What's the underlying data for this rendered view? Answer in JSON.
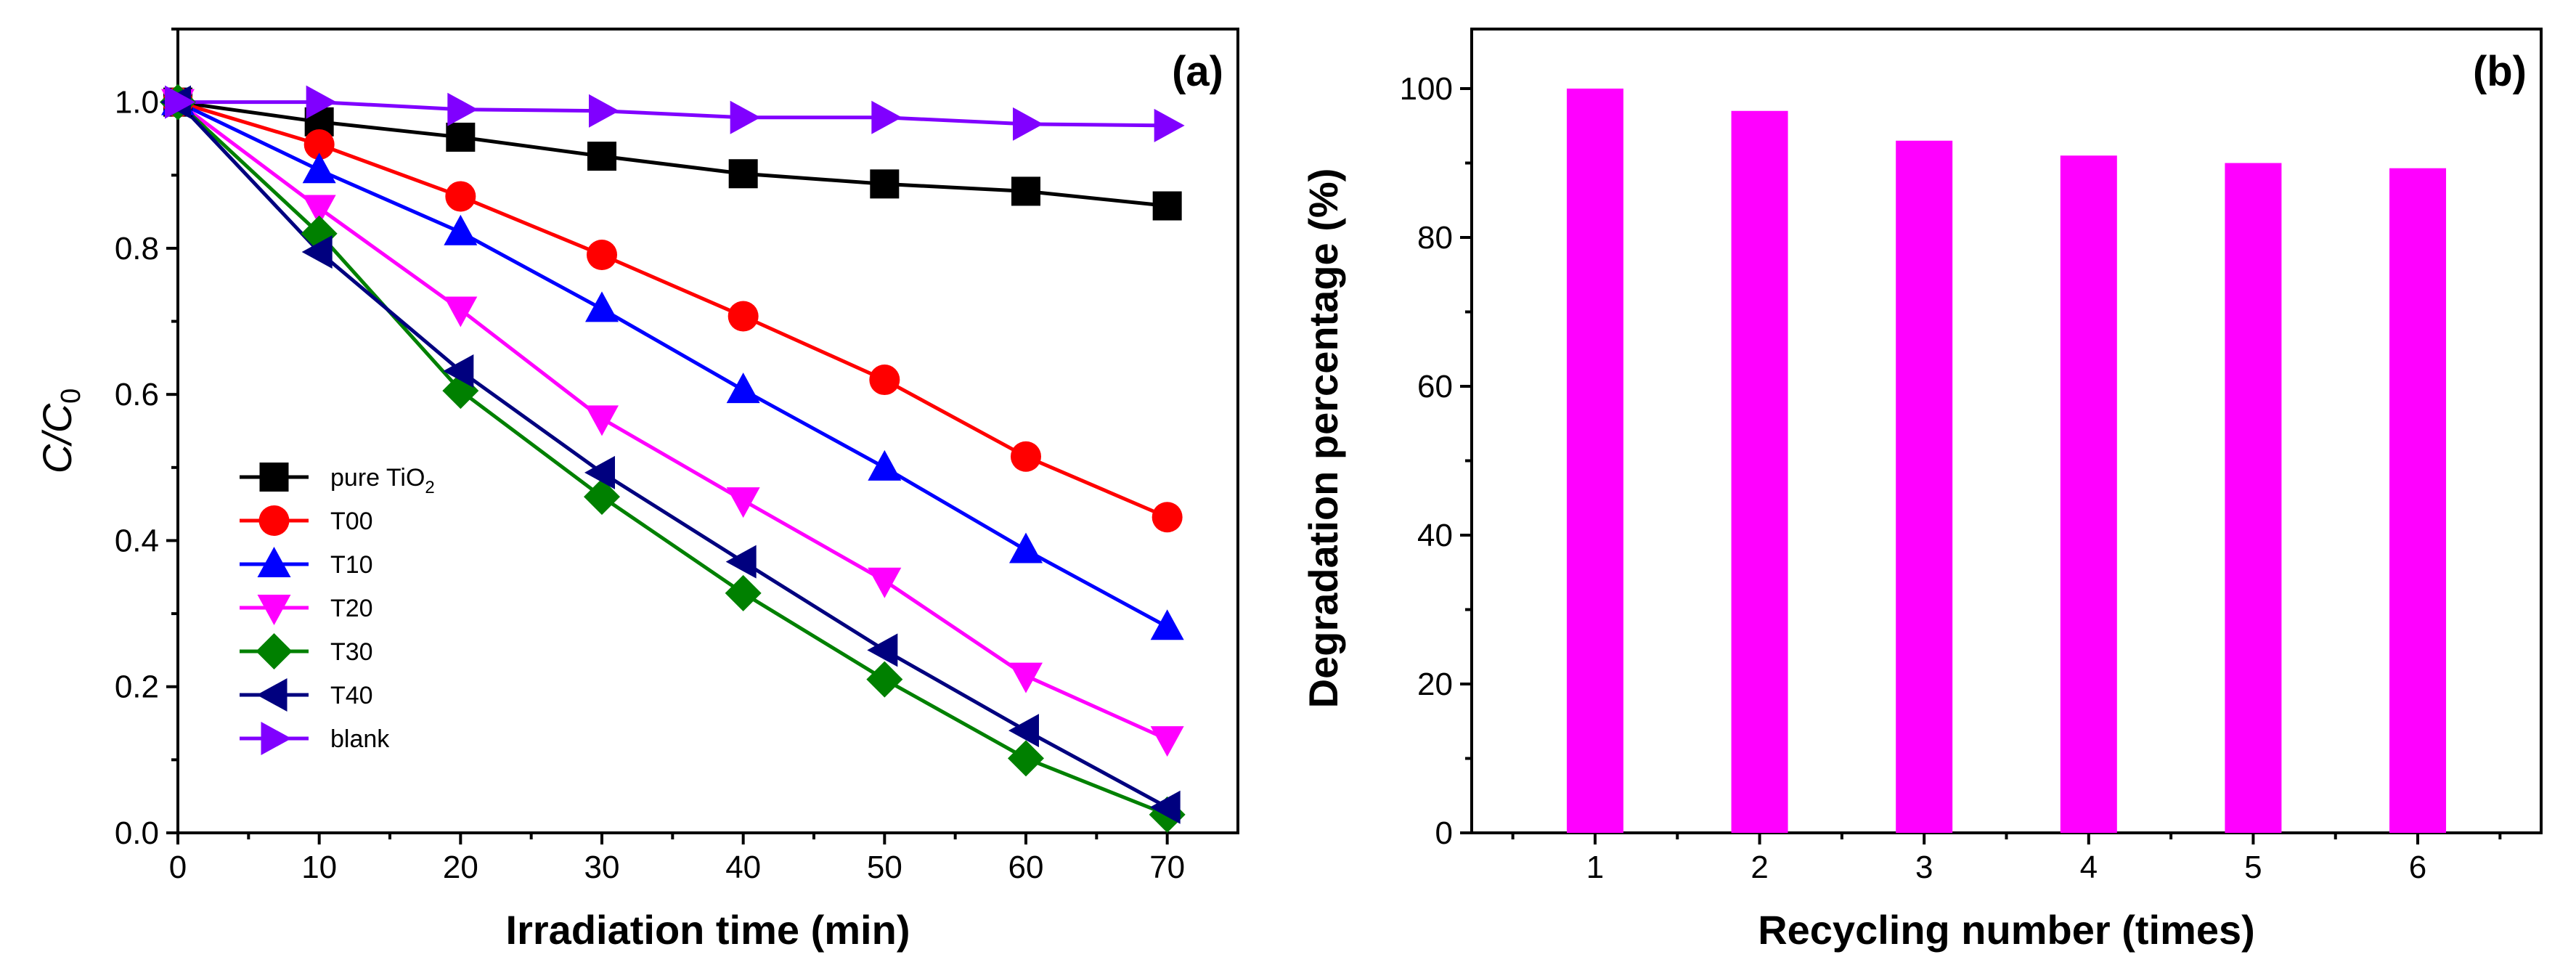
{
  "chart_data": [
    {
      "type": "line",
      "panel_label": "(a)",
      "xlabel": "Irradiation time (min)",
      "ylabel_main": "C",
      "ylabel_sep": "/",
      "ylabel_sub_base": "C",
      "ylabel_sub": "0",
      "xlim": [
        0,
        75
      ],
      "ylim": [
        0.0,
        1.1
      ],
      "xticks": [
        0,
        10,
        20,
        30,
        40,
        50,
        60,
        70
      ],
      "yticks": [
        0.0,
        0.2,
        0.4,
        0.6,
        0.8,
        1.0
      ],
      "ytick_labels": [
        "0.0",
        "0.2",
        "0.4",
        "0.6",
        "0.8",
        "1.0"
      ],
      "x": [
        0,
        10,
        20,
        30,
        40,
        50,
        60,
        70
      ],
      "legend_position": "left-middle",
      "series": [
        {
          "name": "pure TiO",
          "name_sub": "2",
          "color": "#000000",
          "marker": "square",
          "values": [
            1.0,
            0.973,
            0.952,
            0.926,
            0.902,
            0.888,
            0.878,
            0.858
          ]
        },
        {
          "name": "T00",
          "color": "#ff0000",
          "marker": "circle",
          "values": [
            1.0,
            0.942,
            0.871,
            0.791,
            0.707,
            0.62,
            0.515,
            0.432
          ]
        },
        {
          "name": "T10",
          "color": "#0000ff",
          "marker": "triangle-up",
          "values": [
            1.0,
            0.907,
            0.822,
            0.717,
            0.606,
            0.5,
            0.387,
            0.282
          ]
        },
        {
          "name": "T20",
          "color": "#ff00ff",
          "marker": "triangle-down",
          "values": [
            1.0,
            0.855,
            0.716,
            0.567,
            0.455,
            0.345,
            0.215,
            0.128
          ]
        },
        {
          "name": "T30",
          "color": "#008000",
          "marker": "diamond",
          "values": [
            1.0,
            0.82,
            0.605,
            0.46,
            0.328,
            0.21,
            0.102,
            0.025
          ]
        },
        {
          "name": "T40",
          "color": "#00007f",
          "marker": "triangle-left",
          "values": [
            1.0,
            0.795,
            0.632,
            0.493,
            0.371,
            0.25,
            0.14,
            0.035
          ]
        },
        {
          "name": "blank",
          "color": "#8000ff",
          "marker": "triangle-right",
          "values": [
            1.0,
            1.0,
            0.99,
            0.988,
            0.979,
            0.979,
            0.97,
            0.968
          ]
        }
      ]
    },
    {
      "type": "bar",
      "panel_label": "(b)",
      "xlabel": "Recycling number (times)",
      "ylabel": "Degradation percentage (%)",
      "ylim": [
        0,
        108
      ],
      "yticks": [
        0,
        20,
        40,
        60,
        80,
        100
      ],
      "categories": [
        "1",
        "2",
        "3",
        "4",
        "5",
        "6"
      ],
      "values": [
        100,
        97,
        93,
        91,
        90,
        89.3
      ],
      "color": "#ff00ff"
    }
  ]
}
